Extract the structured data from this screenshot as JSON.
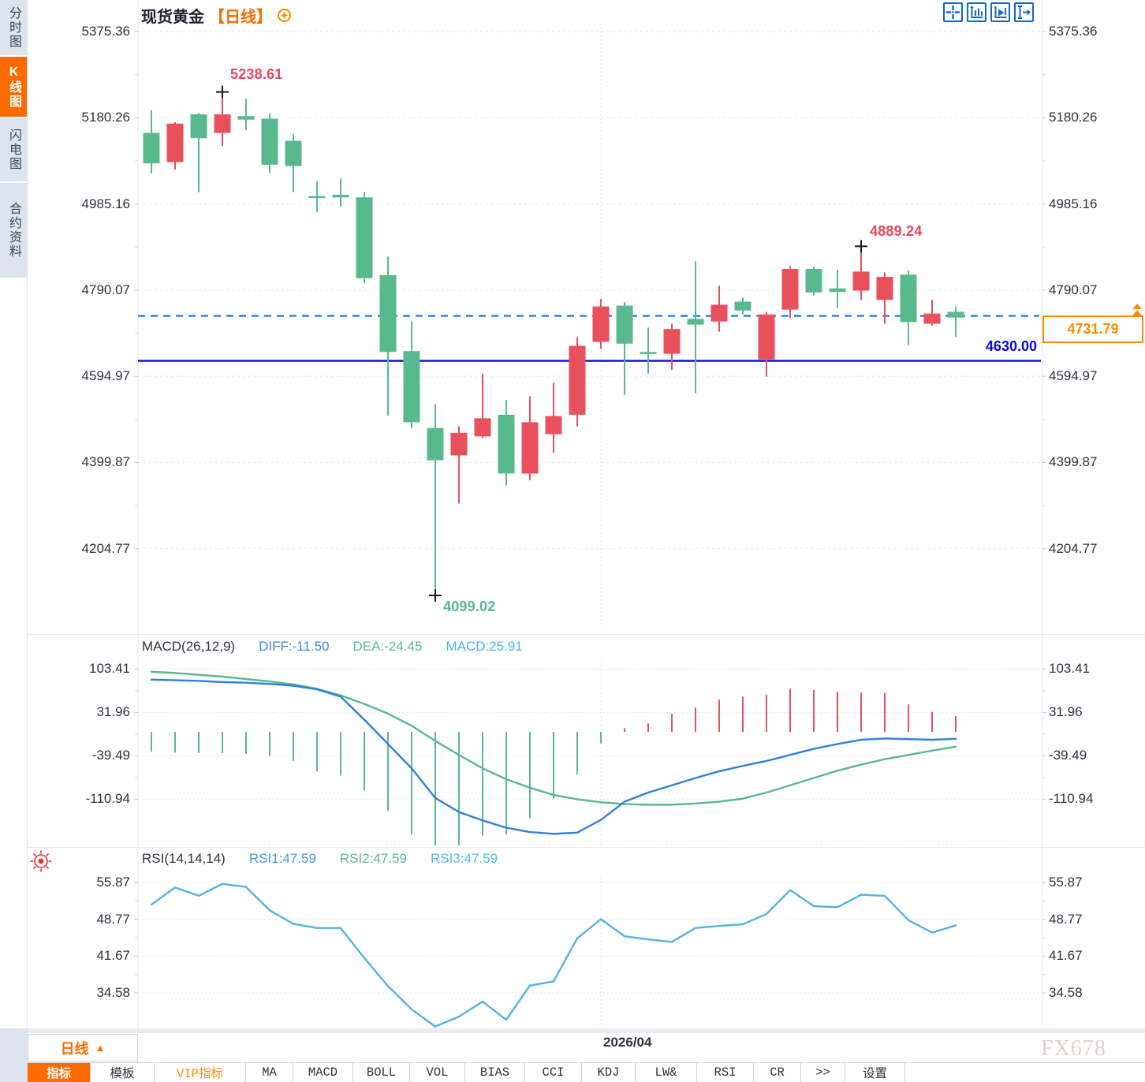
{
  "header": {
    "title": "现货黄金",
    "period_tag": "【日线】"
  },
  "sidebar": {
    "tabs": [
      {
        "label": "分时图",
        "active": false
      },
      {
        "label": "K线图",
        "active": true
      },
      {
        "label": "闪电图",
        "active": false
      },
      {
        "label": "合约资料",
        "active": false
      }
    ]
  },
  "colors": {
    "up": "#e8505c",
    "down": "#57b98c",
    "diff_line": "#2f80dc",
    "dea_line": "#57b98c",
    "rsi_line": "#54b2e2",
    "support_line": "#0808d2",
    "current_line": "#1e82e6",
    "accent": "#ff6a00",
    "grid": "#e3e7ed",
    "icon_blue": "#1468c8",
    "annotation_red": "#e8455a",
    "annotation_green": "#57b98c",
    "watermark": "#dbd3ca"
  },
  "chart_data": {
    "type": "candlestick",
    "title": "现货黄金【日线】",
    "symbol": "现货黄金",
    "period": "日线",
    "price_axis_labels": [
      5375.36,
      5180.26,
      4985.16,
      4790.07,
      4594.97,
      4399.87,
      4204.77
    ],
    "x_date_label": "2026/04",
    "support_line": 4630.0,
    "support_label": "4630.00",
    "current_price": 4731.79,
    "current_price_label": "4731.79",
    "high_label": "5238.61",
    "high2_label": "4889.24",
    "low_label": "4099.02",
    "annotations": [
      {
        "index": 3,
        "price": 5238.61,
        "type": "high"
      },
      {
        "index": 30,
        "price": 4889.24,
        "type": "high"
      },
      {
        "index": 12,
        "price": 4099.02,
        "type": "low"
      }
    ],
    "candles": [
      [
        5146,
        5197,
        5054,
        5077
      ],
      [
        5080,
        5170,
        5063,
        5167
      ],
      [
        5188,
        5191,
        5012,
        5134
      ],
      [
        5146,
        5238.61,
        5116,
        5188
      ],
      [
        5184,
        5223,
        5152,
        5176
      ],
      [
        5178,
        5190,
        5055,
        5074
      ],
      [
        5128,
        5143,
        5012,
        5071
      ],
      [
        5003,
        5036,
        4967,
        5000
      ],
      [
        5006,
        5043,
        4979,
        5000
      ],
      [
        5000,
        5012,
        4806,
        4817
      ],
      [
        4824,
        4866,
        4506,
        4650
      ],
      [
        4652,
        4720,
        4478,
        4491
      ],
      [
        4478,
        4532,
        4099.02,
        4405
      ],
      [
        4416,
        4482,
        4307,
        4467
      ],
      [
        4459,
        4601,
        4455,
        4500
      ],
      [
        4508,
        4541,
        4348,
        4375
      ],
      [
        4375,
        4550,
        4360,
        4491
      ],
      [
        4464,
        4580,
        4422,
        4505
      ],
      [
        4508,
        4684,
        4482,
        4664
      ],
      [
        4673,
        4770,
        4657,
        4753
      ],
      [
        4755,
        4763,
        4553,
        4669
      ],
      [
        4650,
        4705,
        4601,
        4646
      ],
      [
        4646,
        4714,
        4610,
        4702
      ],
      [
        4725,
        4855,
        4557,
        4712
      ],
      [
        4719,
        4800,
        4696,
        4757
      ],
      [
        4764,
        4773,
        4735,
        4744
      ],
      [
        4633,
        4741,
        4594,
        4735
      ],
      [
        4746,
        4845,
        4727,
        4838
      ],
      [
        4838,
        4843,
        4778,
        4785
      ],
      [
        4794,
        4836,
        4750,
        4786
      ],
      [
        4789,
        4889.24,
        4768,
        4832
      ],
      [
        4768,
        4830,
        4714,
        4820
      ],
      [
        4825,
        4834,
        4666,
        4718
      ],
      [
        4714,
        4768,
        4710,
        4737
      ],
      [
        4741,
        4753,
        4684,
        4728
      ]
    ],
    "macd": {
      "label": "MACD(26,12,9)",
      "diff": -11.5,
      "dea": -24.45,
      "macd": 25.91,
      "diff_label": "DIFF:-11.50",
      "dea_label": "DEA:-24.45",
      "macd_label": "MACD:25.91",
      "axis_labels": [
        103.41,
        31.96,
        -39.49,
        -110.94
      ],
      "hist": [
        -33,
        -34,
        -35,
        -35,
        -36,
        -40,
        -48,
        -65,
        -72,
        -97,
        -130,
        -169,
        -187,
        -187,
        -171,
        -169,
        -142,
        -110,
        -70,
        -19,
        6,
        14,
        30,
        40,
        53,
        58,
        61,
        71,
        69,
        66,
        65,
        64,
        45,
        33,
        25.91
      ],
      "diff_series": [
        86,
        85,
        84,
        82,
        81,
        79,
        76,
        70,
        58,
        20,
        -20,
        -60,
        -109,
        -132,
        -146,
        -158,
        -165,
        -168,
        -166,
        -145,
        -115,
        -100,
        -88,
        -76,
        -65,
        -56,
        -48,
        -38,
        -28,
        -20,
        -13,
        -11,
        -12,
        -13,
        -11.5
      ],
      "dea_series": [
        99,
        97,
        94,
        91,
        87,
        83,
        78,
        71,
        60,
        46,
        30,
        10,
        -15,
        -38,
        -60,
        -78,
        -92,
        -104,
        -111,
        -116,
        -119,
        -120,
        -120,
        -118,
        -115,
        -110,
        -100,
        -88,
        -76,
        -64,
        -54,
        -45,
        -38,
        -31,
        -24.45
      ]
    },
    "rsi": {
      "label": "RSI(14,14,14)",
      "rsi1": 47.59,
      "rsi2": 47.59,
      "rsi3": 47.59,
      "rsi1_label": "RSI1:47.59",
      "rsi2_label": "RSI2:47.59",
      "rsi3_label": "RSI3:47.59",
      "axis_labels": [
        55.87,
        48.77,
        41.67,
        34.58
      ],
      "series": [
        51.6,
        54.9,
        53.3,
        55.6,
        55.0,
        50.5,
        47.9,
        47.1,
        47.1,
        41.3,
        35.9,
        31.4,
        28.1,
        30.0,
        32.9,
        29.4,
        36.0,
        36.8,
        45.1,
        48.8,
        45.5,
        44.9,
        44.4,
        47.1,
        47.5,
        47.8,
        49.8,
        54.4,
        51.3,
        51.1,
        53.5,
        53.3,
        48.6,
        46.2,
        47.59
      ]
    }
  },
  "bottom": {
    "period_button": {
      "label": "日线",
      "arrow": "▲"
    },
    "watermark": "FX678",
    "toolbar": [
      {
        "label": "指标",
        "active": true
      },
      {
        "label": "模板"
      },
      {
        "label": "VIP指标",
        "vip": true
      },
      {
        "label": "MA"
      },
      {
        "label": "MACD"
      },
      {
        "label": "BOLL"
      },
      {
        "label": "VOL"
      },
      {
        "label": "BIAS"
      },
      {
        "label": "CCI"
      },
      {
        "label": "KDJ"
      },
      {
        "label": "LW&"
      },
      {
        "label": "RSI"
      },
      {
        "label": "CR"
      },
      {
        "label": ">>"
      },
      {
        "label": "设置"
      }
    ]
  }
}
